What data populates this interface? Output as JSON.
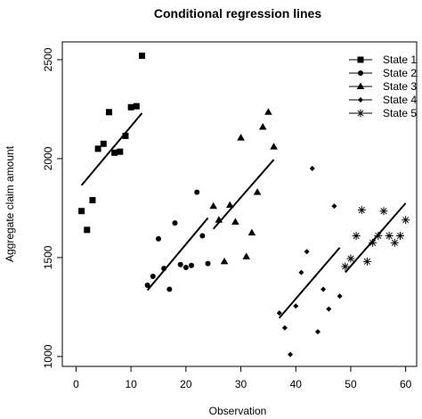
{
  "chart_data": {
    "type": "scatter",
    "title": "Conditional regression lines",
    "xlabel": "Observation",
    "ylabel": "Aggregate claim amount",
    "xlim": [
      -2.5,
      62
    ],
    "ylim": [
      950,
      2590
    ],
    "x_ticks": [
      0,
      10,
      20,
      30,
      40,
      50,
      60
    ],
    "y_ticks": [
      1000,
      1500,
      2000,
      2500
    ],
    "grid": false,
    "legend_position": "top-right",
    "series": [
      {
        "name": "State 1",
        "marker": "square",
        "points": [
          [
            1,
            1735
          ],
          [
            2,
            1640
          ],
          [
            3,
            1790
          ],
          [
            4,
            2050
          ],
          [
            5,
            2075
          ],
          [
            6,
            2235
          ],
          [
            7,
            2030
          ],
          [
            8,
            2035
          ],
          [
            9,
            2115
          ],
          [
            10,
            2260
          ],
          [
            11,
            2265
          ],
          [
            12,
            2520
          ]
        ],
        "regression": [
          [
            1,
            1865
          ],
          [
            12,
            2230
          ]
        ]
      },
      {
        "name": "State 2",
        "marker": "circle",
        "points": [
          [
            13,
            1360
          ],
          [
            14,
            1405
          ],
          [
            15,
            1595
          ],
          [
            16,
            1445
          ],
          [
            17,
            1340
          ],
          [
            18,
            1675
          ],
          [
            19,
            1465
          ],
          [
            20,
            1450
          ],
          [
            21,
            1460
          ],
          [
            22,
            1830
          ],
          [
            23,
            1610
          ],
          [
            24,
            1470
          ]
        ],
        "regression": [
          [
            13,
            1335
          ],
          [
            24,
            1700
          ]
        ]
      },
      {
        "name": "State 3",
        "marker": "triangle",
        "points": [
          [
            25,
            1760
          ],
          [
            26,
            1690
          ],
          [
            27,
            1480
          ],
          [
            28,
            1765
          ],
          [
            29,
            1680
          ],
          [
            30,
            2105
          ],
          [
            31,
            1505
          ],
          [
            32,
            1625
          ],
          [
            33,
            1830
          ],
          [
            34,
            2160
          ],
          [
            35,
            2235
          ],
          [
            36,
            2060
          ]
        ],
        "regression": [
          [
            25,
            1645
          ],
          [
            36,
            1995
          ]
        ]
      },
      {
        "name": "State 4",
        "marker": "diamond",
        "points": [
          [
            37,
            1220
          ],
          [
            38,
            1145
          ],
          [
            39,
            1010
          ],
          [
            40,
            1255
          ],
          [
            41,
            1425
          ],
          [
            42,
            1530
          ],
          [
            43,
            1950
          ],
          [
            44,
            1125
          ],
          [
            45,
            1340
          ],
          [
            46,
            1240
          ],
          [
            47,
            1760
          ],
          [
            48,
            1305
          ]
        ],
        "regression": [
          [
            37,
            1195
          ],
          [
            48,
            1550
          ]
        ]
      },
      {
        "name": "State 5",
        "marker": "star",
        "points": [
          [
            49,
            1455
          ],
          [
            50,
            1495
          ],
          [
            51,
            1610
          ],
          [
            52,
            1740
          ],
          [
            53,
            1480
          ],
          [
            54,
            1575
          ],
          [
            55,
            1610
          ],
          [
            56,
            1735
          ],
          [
            57,
            1610
          ],
          [
            58,
            1575
          ],
          [
            59,
            1610
          ],
          [
            60,
            1690
          ]
        ],
        "regression": [
          [
            49,
            1425
          ],
          [
            60,
            1775
          ]
        ]
      }
    ]
  }
}
